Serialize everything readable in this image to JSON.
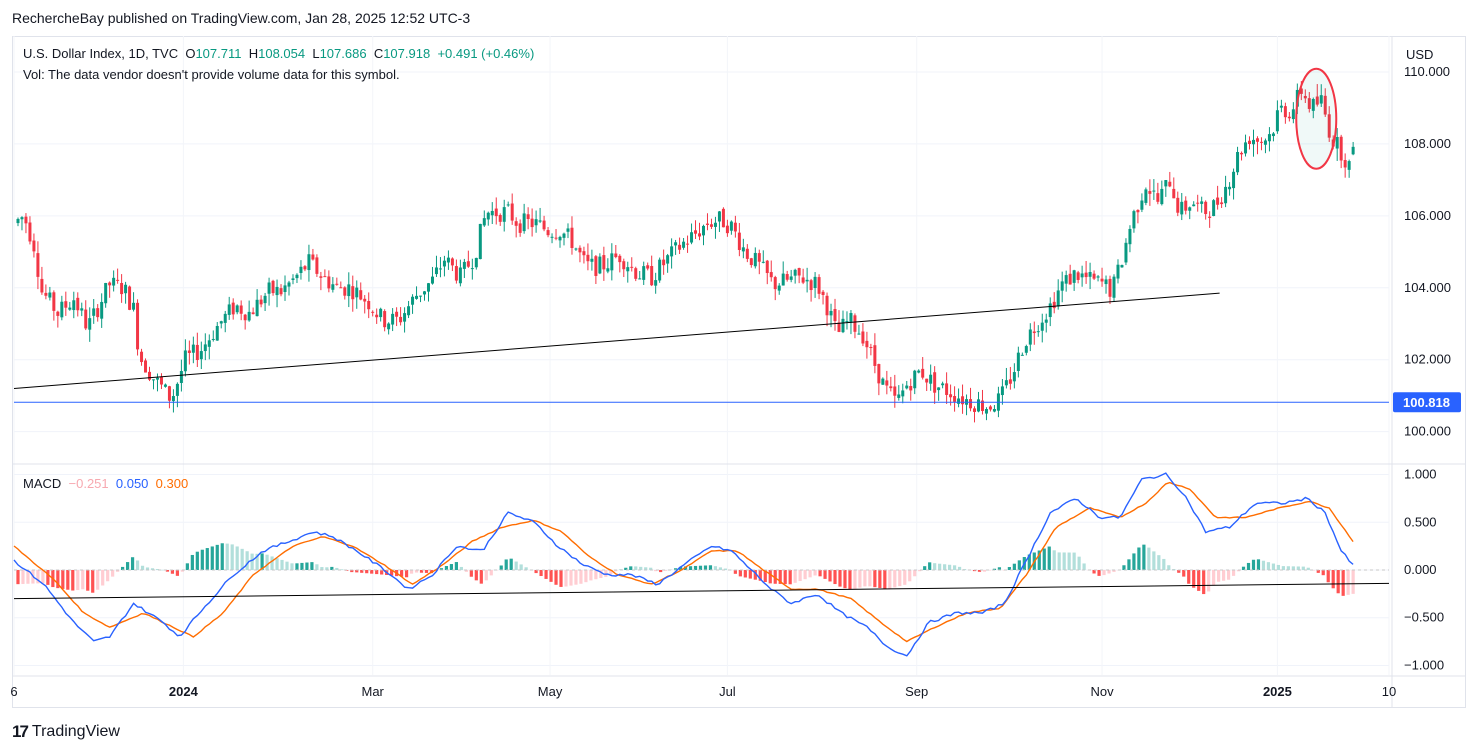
{
  "header": {
    "publisher_line": "RechercheBay published on TradingView.com, Jan 28, 2025 12:52 UTC-3"
  },
  "legend": {
    "symbol": "U.S. Dollar Index, 1D, TVC",
    "o_label": "O",
    "o_value": "107.711",
    "h_label": "H",
    "h_value": "108.054",
    "l_label": "L",
    "l_value": "107.686",
    "c_label": "C",
    "c_value": "107.918",
    "change": "+0.491 (+0.46%)",
    "vol_note": "Vol: The data vendor doesn't provide volume data for this symbol."
  },
  "macd_legend": {
    "title": "MACD",
    "hist_value": "−0.251",
    "macd_value": "0.050",
    "signal_value": "0.300"
  },
  "currency": "USD",
  "price_marker": "100.818",
  "footer": {
    "brand": "TradingView",
    "mark": "17"
  },
  "colors": {
    "up": "#089981",
    "down": "#f23645",
    "macd_line": "#2962ff",
    "signal_line": "#ff6d00",
    "hist_up_strong": "#26a69a",
    "hist_up_weak": "#b2dfdb",
    "hist_down_strong": "#ff5252",
    "hist_down_weak": "#ffcdd2",
    "level_line": "#2962ff",
    "trend_line": "#000000",
    "circle": "#f23645"
  },
  "chart_data": [
    {
      "type": "candlestick",
      "title": "U.S. Dollar Index, 1D, TVC",
      "ylim": [
        99.1,
        111.0
      ],
      "y_ticks": [
        100.0,
        102.0,
        104.0,
        106.0,
        108.0,
        110.0
      ],
      "y_tick_labels": [
        "100.000",
        "102.000",
        "104.000",
        "106.000",
        "108.000",
        "110.000"
      ],
      "x_ticks": [
        "6",
        "2024",
        "Mar",
        "May",
        "Jul",
        "Sep",
        "Nov",
        "2025",
        "10"
      ],
      "close_path": [
        [
          0,
          105.8
        ],
        [
          10,
          106.0
        ],
        [
          20,
          105.2
        ],
        [
          28,
          103.9
        ],
        [
          44,
          103.3
        ],
        [
          60,
          103.7
        ],
        [
          74,
          102.9
        ],
        [
          96,
          104.1
        ],
        [
          110,
          104.0
        ],
        [
          120,
          103.4
        ],
        [
          126,
          102.1
        ],
        [
          140,
          101.5
        ],
        [
          158,
          100.9
        ],
        [
          172,
          102.0
        ],
        [
          188,
          102.3
        ],
        [
          206,
          103.0
        ],
        [
          222,
          103.5
        ],
        [
          236,
          103.3
        ],
        [
          256,
          103.9
        ],
        [
          268,
          103.9
        ],
        [
          280,
          104.2
        ],
        [
          296,
          104.7
        ],
        [
          310,
          104.3
        ],
        [
          324,
          104.0
        ],
        [
          338,
          104.0
        ],
        [
          356,
          103.6
        ],
        [
          370,
          103.1
        ],
        [
          386,
          103.1
        ],
        [
          404,
          103.8
        ],
        [
          420,
          104.2
        ],
        [
          432,
          104.8
        ],
        [
          448,
          104.3
        ],
        [
          462,
          104.9
        ],
        [
          474,
          106.1
        ],
        [
          484,
          106.1
        ],
        [
          496,
          106.1
        ],
        [
          506,
          105.8
        ],
        [
          522,
          105.8
        ],
        [
          536,
          105.6
        ],
        [
          548,
          105.6
        ],
        [
          560,
          105.3
        ],
        [
          574,
          104.6
        ],
        [
          590,
          104.6
        ],
        [
          608,
          104.9
        ],
        [
          626,
          104.4
        ],
        [
          640,
          104.3
        ],
        [
          656,
          104.8
        ],
        [
          670,
          105.2
        ],
        [
          684,
          105.5
        ],
        [
          696,
          105.8
        ],
        [
          710,
          105.9
        ],
        [
          720,
          105.7
        ],
        [
          734,
          105.0
        ],
        [
          748,
          104.6
        ],
        [
          762,
          104.1
        ],
        [
          776,
          104.2
        ],
        [
          790,
          104.3
        ],
        [
          806,
          104.1
        ],
        [
          816,
          103.5
        ],
        [
          826,
          102.7
        ],
        [
          838,
          103.1
        ],
        [
          852,
          102.7
        ],
        [
          862,
          102.0
        ],
        [
          874,
          101.2
        ],
        [
          886,
          100.8
        ],
        [
          896,
          101.3
        ],
        [
          910,
          101.7
        ],
        [
          924,
          101.3
        ],
        [
          940,
          101.1
        ],
        [
          954,
          100.9
        ],
        [
          966,
          100.8
        ],
        [
          978,
          100.7
        ],
        [
          990,
          100.9
        ],
        [
          1002,
          101.6
        ],
        [
          1014,
          102.5
        ],
        [
          1026,
          103.0
        ],
        [
          1038,
          103.4
        ],
        [
          1052,
          104.1
        ],
        [
          1066,
          104.4
        ],
        [
          1080,
          104.2
        ],
        [
          1094,
          104.1
        ],
        [
          1102,
          103.9
        ],
        [
          1112,
          104.8
        ],
        [
          1122,
          105.9
        ],
        [
          1136,
          106.9
        ],
        [
          1148,
          106.4
        ],
        [
          1160,
          107.0
        ],
        [
          1170,
          106.1
        ],
        [
          1182,
          106.4
        ],
        [
          1194,
          106.1
        ],
        [
          1206,
          106.3
        ],
        [
          1218,
          106.9
        ],
        [
          1230,
          107.8
        ],
        [
          1240,
          108.2
        ],
        [
          1252,
          108.1
        ],
        [
          1262,
          108.3
        ],
        [
          1270,
          109.0
        ],
        [
          1282,
          108.9
        ],
        [
          1292,
          109.5
        ],
        [
          1302,
          109.0
        ],
        [
          1312,
          109.2
        ],
        [
          1322,
          108.2
        ],
        [
          1332,
          107.8
        ],
        [
          1340,
          107.4
        ],
        [
          1346,
          107.9
        ]
      ],
      "last_candle": {
        "open": 107.711,
        "high": 108.054,
        "low": 107.686,
        "close": 107.918
      },
      "horizontal_level": 100.818,
      "trend_line": [
        [
          0,
          101.2
        ],
        [
          1210,
          103.85
        ]
      ],
      "highlight_circle": {
        "center_index": 1307,
        "center_value": 108.7,
        "note": "red ellipse"
      }
    },
    {
      "type": "macd",
      "title": "MACD",
      "ylim": [
        -1.1,
        1.1
      ],
      "y_ticks": [
        1.0,
        0.5,
        0.0,
        -0.5,
        -1.0
      ],
      "y_tick_labels": [
        "1.000",
        "0.500",
        "0.000",
        "−0.500",
        "−1.000"
      ],
      "macd_path": [
        [
          0,
          0.1
        ],
        [
          30,
          -0.15
        ],
        [
          60,
          -0.55
        ],
        [
          80,
          -0.75
        ],
        [
          96,
          -0.7
        ],
        [
          120,
          -0.35
        ],
        [
          150,
          -0.55
        ],
        [
          166,
          -0.7
        ],
        [
          190,
          -0.4
        ],
        [
          220,
          -0.05
        ],
        [
          250,
          0.2
        ],
        [
          276,
          0.3
        ],
        [
          300,
          0.4
        ],
        [
          320,
          0.35
        ],
        [
          344,
          0.2
        ],
        [
          372,
          0.0
        ],
        [
          396,
          -0.2
        ],
        [
          420,
          -0.05
        ],
        [
          444,
          0.25
        ],
        [
          470,
          0.2
        ],
        [
          496,
          0.6
        ],
        [
          522,
          0.5
        ],
        [
          546,
          0.25
        ],
        [
          572,
          0.05
        ],
        [
          596,
          -0.05
        ],
        [
          620,
          -0.05
        ],
        [
          646,
          -0.15
        ],
        [
          672,
          0.05
        ],
        [
          700,
          0.25
        ],
        [
          720,
          0.2
        ],
        [
          740,
          0.0
        ],
        [
          760,
          -0.2
        ],
        [
          780,
          -0.35
        ],
        [
          806,
          -0.25
        ],
        [
          830,
          -0.45
        ],
        [
          856,
          -0.6
        ],
        [
          876,
          -0.8
        ],
        [
          896,
          -0.9
        ],
        [
          918,
          -0.55
        ],
        [
          946,
          -0.45
        ],
        [
          972,
          -0.45
        ],
        [
          994,
          -0.35
        ],
        [
          1016,
          0.1
        ],
        [
          1040,
          0.6
        ],
        [
          1066,
          0.75
        ],
        [
          1090,
          0.55
        ],
        [
          1110,
          0.55
        ],
        [
          1132,
          0.95
        ],
        [
          1156,
          1.0
        ],
        [
          1174,
          0.8
        ],
        [
          1196,
          0.4
        ],
        [
          1220,
          0.45
        ],
        [
          1246,
          0.7
        ],
        [
          1274,
          0.7
        ],
        [
          1298,
          0.75
        ],
        [
          1316,
          0.6
        ],
        [
          1332,
          0.2
        ],
        [
          1344,
          0.05
        ]
      ],
      "signal_path": [
        [
          0,
          0.25
        ],
        [
          40,
          -0.1
        ],
        [
          70,
          -0.45
        ],
        [
          96,
          -0.6
        ],
        [
          130,
          -0.45
        ],
        [
          160,
          -0.6
        ],
        [
          180,
          -0.7
        ],
        [
          210,
          -0.45
        ],
        [
          240,
          -0.05
        ],
        [
          280,
          0.25
        ],
        [
          310,
          0.35
        ],
        [
          340,
          0.25
        ],
        [
          372,
          0.05
        ],
        [
          400,
          -0.15
        ],
        [
          430,
          0.05
        ],
        [
          460,
          0.3
        ],
        [
          490,
          0.45
        ],
        [
          522,
          0.52
        ],
        [
          550,
          0.4
        ],
        [
          576,
          0.15
        ],
        [
          606,
          -0.05
        ],
        [
          640,
          -0.15
        ],
        [
          670,
          0.0
        ],
        [
          700,
          0.2
        ],
        [
          726,
          0.2
        ],
        [
          752,
          0.0
        ],
        [
          780,
          -0.2
        ],
        [
          806,
          -0.2
        ],
        [
          840,
          -0.3
        ],
        [
          870,
          -0.55
        ],
        [
          896,
          -0.75
        ],
        [
          924,
          -0.6
        ],
        [
          956,
          -0.45
        ],
        [
          990,
          -0.4
        ],
        [
          1016,
          -0.05
        ],
        [
          1046,
          0.45
        ],
        [
          1080,
          0.65
        ],
        [
          1110,
          0.55
        ],
        [
          1136,
          0.7
        ],
        [
          1158,
          0.92
        ],
        [
          1180,
          0.85
        ],
        [
          1206,
          0.55
        ],
        [
          1236,
          0.55
        ],
        [
          1270,
          0.65
        ],
        [
          1300,
          0.72
        ],
        [
          1320,
          0.65
        ],
        [
          1344,
          0.3
        ]
      ],
      "histogram_value": -0.251,
      "macd_value": 0.05,
      "signal_value": 0.3,
      "trend_line": [
        [
          0,
          -0.3
        ],
        [
          1380,
          -0.14
        ]
      ]
    }
  ]
}
